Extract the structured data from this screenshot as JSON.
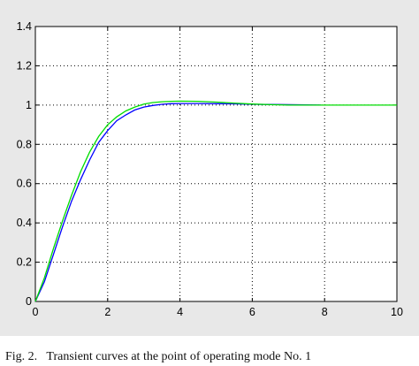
{
  "chart_data": {
    "type": "line",
    "xlim": [
      0,
      10
    ],
    "ylim": [
      0,
      1.4
    ],
    "xticks": [
      "0",
      "2",
      "4",
      "6",
      "8",
      "10"
    ],
    "yticks": [
      "0",
      "0.2",
      "0.4",
      "0.6",
      "0.8",
      "1",
      "1.2",
      "1.4"
    ],
    "grid": true,
    "series": [
      {
        "color": "#0000ff",
        "x": [
          0,
          0.25,
          0.5,
          0.75,
          1.0,
          1.25,
          1.5,
          1.75,
          2.0,
          2.25,
          2.5,
          2.75,
          3.0,
          3.25,
          3.5,
          3.75,
          4.0,
          4.5,
          5.0,
          5.5,
          6.0,
          6.5,
          7.0,
          7.5,
          7.9
        ],
        "y": [
          0,
          0.1,
          0.24,
          0.38,
          0.51,
          0.62,
          0.72,
          0.81,
          0.87,
          0.92,
          0.95,
          0.975,
          0.99,
          0.998,
          1.004,
          1.007,
          1.008,
          1.008,
          1.007,
          1.006,
          1.004,
          1.003,
          1.002,
          1.001,
          1.0
        ]
      },
      {
        "color": "#00dd00",
        "x": [
          0,
          0.25,
          0.5,
          0.75,
          1.0,
          1.25,
          1.5,
          1.75,
          2.0,
          2.25,
          2.5,
          2.75,
          3.0,
          3.25,
          3.5,
          3.75,
          4.0,
          4.5,
          5.0,
          5.5,
          6.0,
          6.5,
          7.0,
          7.5,
          8.0,
          9.0,
          10.0
        ],
        "y": [
          0,
          0.12,
          0.27,
          0.41,
          0.54,
          0.66,
          0.76,
          0.84,
          0.9,
          0.94,
          0.97,
          0.99,
          1.005,
          1.013,
          1.017,
          1.019,
          1.02,
          1.019,
          1.015,
          1.01,
          1.005,
          1.002,
          1.0,
          1.0,
          1.0,
          1.0,
          1.0
        ]
      }
    ]
  },
  "caption": "Fig. 2.   Transient curves at the point of operating mode No. 1"
}
